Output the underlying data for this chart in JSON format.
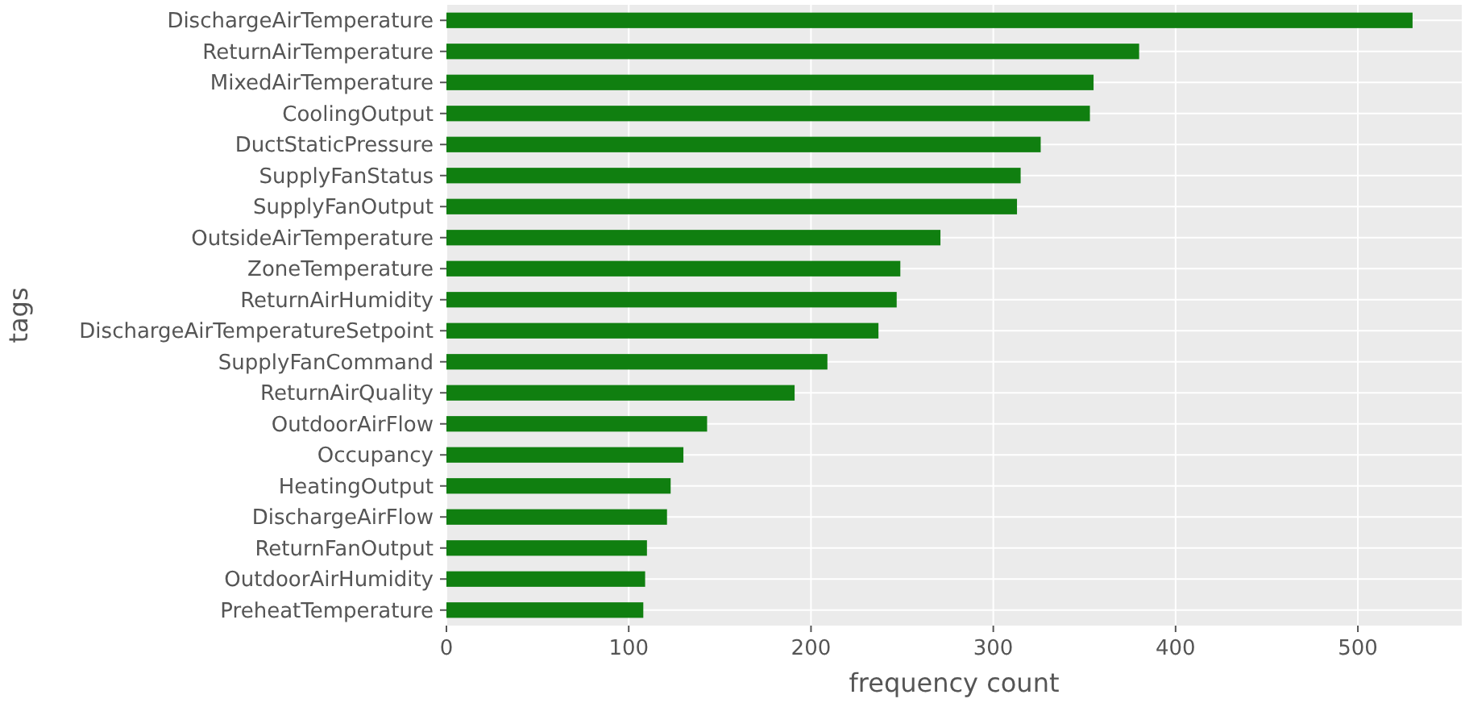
{
  "chart_data": {
    "type": "bar",
    "orientation": "horizontal",
    "xlabel": "frequency count",
    "ylabel": "tags",
    "categories": [
      "DischargeAirTemperature",
      "ReturnAirTemperature",
      "MixedAirTemperature",
      "CoolingOutput",
      "DuctStaticPressure",
      "SupplyFanStatus",
      "SupplyFanOutput",
      "OutsideAirTemperature",
      "ZoneTemperature",
      "ReturnAirHumidity",
      "DischargeAirTemperatureSetpoint",
      "SupplyFanCommand",
      "ReturnAirQuality",
      "OutdoorAirFlow",
      "Occupancy",
      "HeatingOutput",
      "DischargeAirFlow",
      "ReturnFanOutput",
      "OutdoorAirHumidity",
      "PreheatTemperature"
    ],
    "values": [
      530,
      380,
      355,
      353,
      326,
      315,
      313,
      271,
      249,
      247,
      237,
      209,
      191,
      143,
      130,
      123,
      121,
      110,
      109,
      108
    ],
    "color": "#107f10",
    "xlim": [
      0,
      557
    ],
    "xticks": [
      0,
      100,
      200,
      300,
      400,
      500
    ],
    "grid": true
  }
}
